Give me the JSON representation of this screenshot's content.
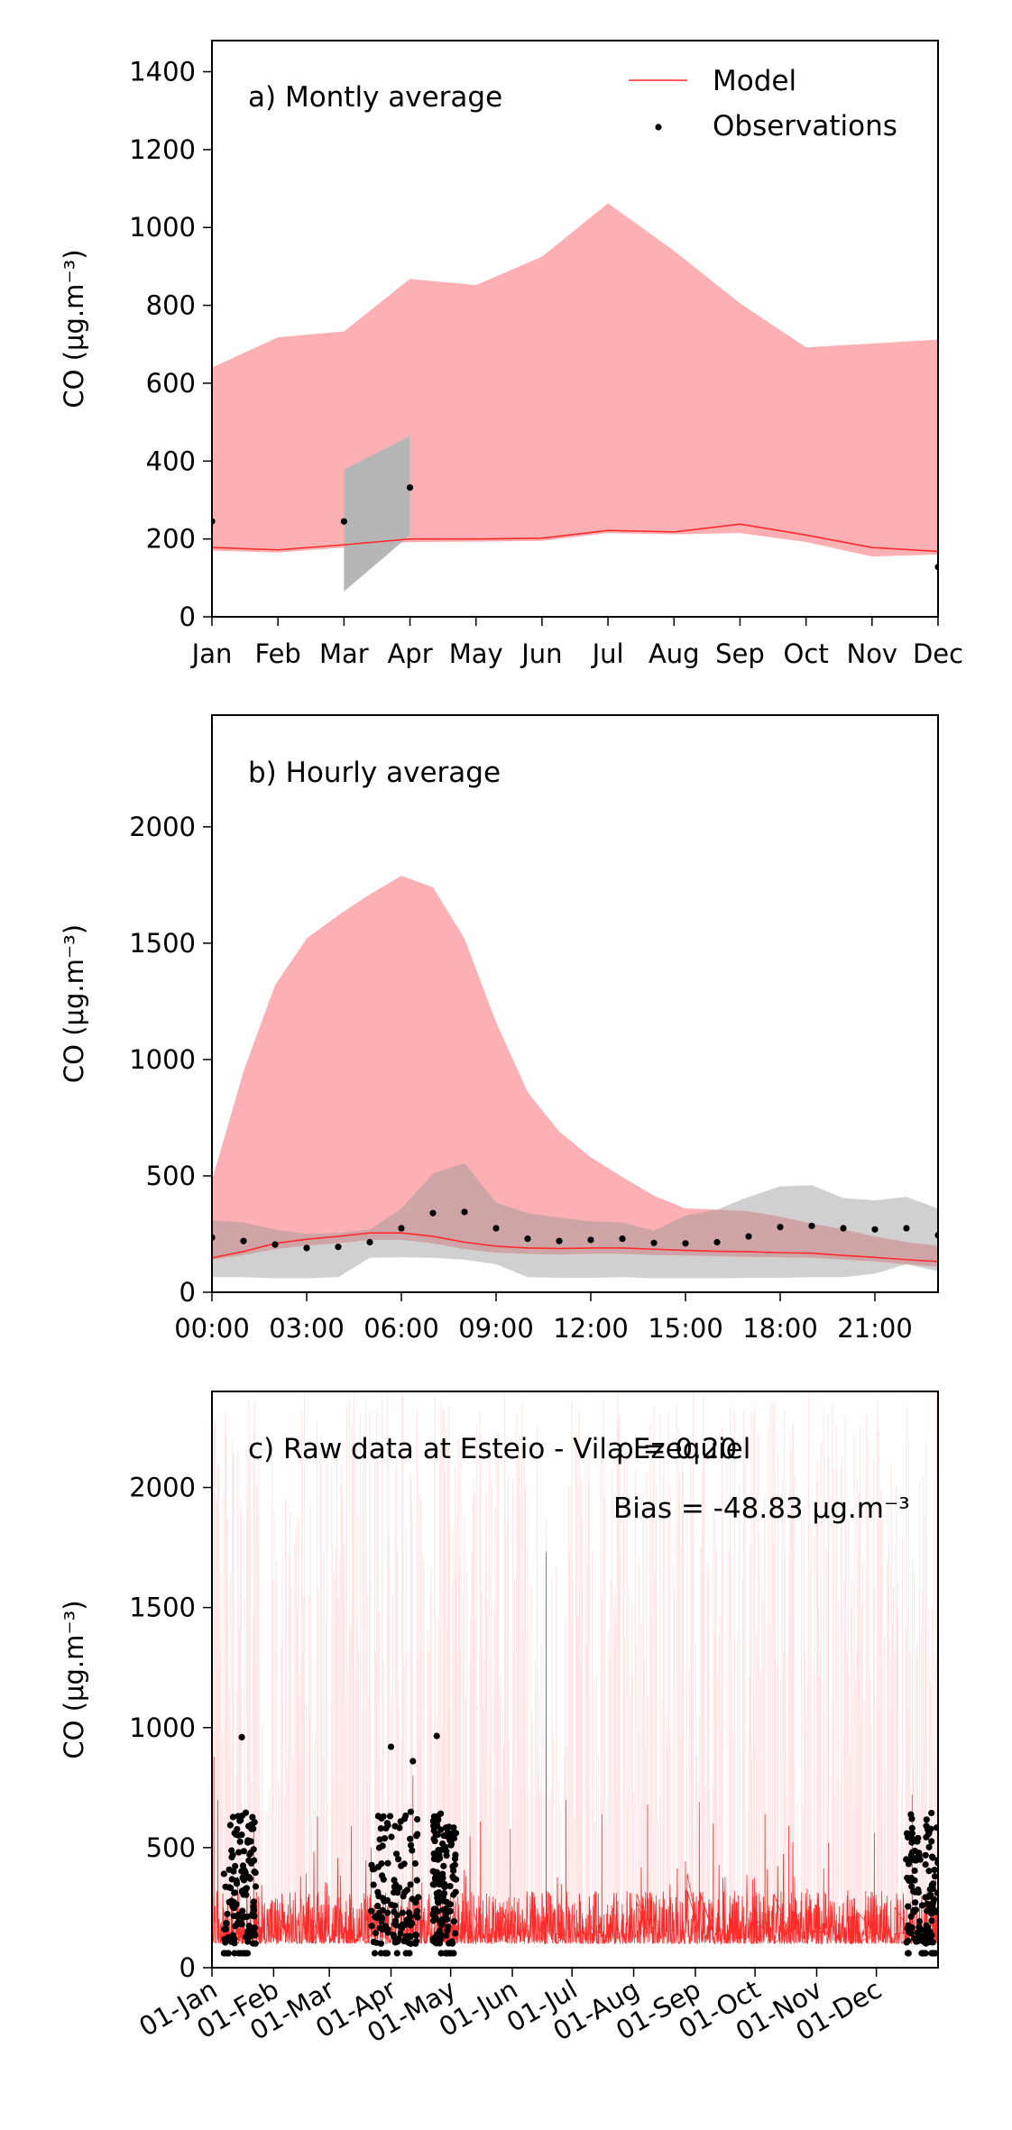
{
  "colors": {
    "model_line": "#ff2a2a",
    "model_band": "#fdb0b3",
    "obs_band": "#c8c8c8",
    "obs_point": "#000000",
    "raw_spikes": "#ffcccc"
  },
  "legend": {
    "model": "Model",
    "observations": "Observations"
  },
  "chart_data": [
    {
      "type": "line",
      "title": "a) Montly average",
      "ylabel": "CO (μg.m⁻³)",
      "ylim": [
        0,
        1480
      ],
      "yticks": [
        0,
        200,
        400,
        600,
        800,
        1000,
        1200,
        1400
      ],
      "yticklabels": [
        "0",
        "200",
        "400",
        "600",
        "800",
        "1000",
        "1200",
        "1400"
      ],
      "categories": [
        "Jan",
        "Feb",
        "Mar",
        "Apr",
        "May",
        "Jun",
        "Jul",
        "Aug",
        "Sep",
        "Oct",
        "Nov",
        "Dec"
      ],
      "series": [
        {
          "name": "Model",
          "values": [
            178,
            172,
            185,
            200,
            200,
            202,
            222,
            218,
            238,
            210,
            178,
            168
          ],
          "band_low": [
            170,
            165,
            178,
            192,
            193,
            195,
            215,
            212,
            215,
            192,
            155,
            160
          ],
          "band_high": [
            640,
            718,
            733,
            868,
            852,
            925,
            1062,
            940,
            805,
            692,
            702,
            712
          ]
        },
        {
          "name": "Observations",
          "values": [
            245,
            null,
            245,
            332,
            null,
            null,
            null,
            null,
            null,
            null,
            null,
            128
          ],
          "band_low": [
            null,
            null,
            65,
            210,
            null,
            null,
            null,
            null,
            null,
            null,
            null,
            null
          ],
          "band_high": [
            null,
            null,
            378,
            465,
            null,
            null,
            null,
            null,
            null,
            null,
            null,
            null
          ]
        }
      ],
      "legend_position": "top-right"
    },
    {
      "type": "line",
      "title": "b) Hourly average",
      "ylabel": "CO (μg.m⁻³)",
      "ylim": [
        0,
        2480
      ],
      "yticks": [
        0,
        500,
        1000,
        1500,
        2000
      ],
      "yticklabels": [
        "0",
        "500",
        "1000",
        "1500",
        "2000"
      ],
      "x": [
        0,
        1,
        2,
        3,
        4,
        5,
        6,
        7,
        8,
        9,
        10,
        11,
        12,
        13,
        14,
        15,
        16,
        17,
        18,
        19,
        20,
        21,
        22,
        23
      ],
      "xticks": [
        0,
        3,
        6,
        9,
        12,
        15,
        18,
        21
      ],
      "xticklabels": [
        "00:00",
        "03:00",
        "06:00",
        "09:00",
        "12:00",
        "15:00",
        "18:00",
        "21:00"
      ],
      "xlim": [
        0,
        23
      ],
      "series": [
        {
          "name": "Model",
          "values": [
            148,
            175,
            210,
            228,
            240,
            255,
            255,
            240,
            215,
            198,
            190,
            188,
            190,
            190,
            185,
            180,
            176,
            174,
            170,
            168,
            158,
            150,
            140,
            132
          ],
          "band_low": [
            140,
            160,
            185,
            200,
            210,
            225,
            225,
            210,
            185,
            170,
            165,
            162,
            165,
            165,
            160,
            158,
            155,
            152,
            150,
            148,
            140,
            132,
            120,
            110
          ],
          "band_high": [
            480,
            950,
            1320,
            1520,
            1620,
            1710,
            1790,
            1740,
            1520,
            1160,
            860,
            690,
            580,
            495,
            415,
            360,
            355,
            348,
            325,
            295,
            270,
            240,
            215,
            200
          ]
        },
        {
          "name": "Observations",
          "values": [
            235,
            220,
            205,
            190,
            195,
            215,
            275,
            340,
            345,
            275,
            230,
            220,
            225,
            230,
            212,
            210,
            215,
            240,
            280,
            285,
            275,
            270,
            275,
            245
          ],
          "band_low": [
            65,
            65,
            60,
            60,
            65,
            148,
            150,
            148,
            140,
            120,
            65,
            62,
            62,
            65,
            60,
            60,
            60,
            62,
            62,
            65,
            65,
            80,
            120,
            90
          ],
          "band_high": [
            310,
            300,
            270,
            250,
            255,
            270,
            360,
            510,
            555,
            385,
            340,
            320,
            305,
            300,
            265,
            330,
            355,
            410,
            455,
            460,
            405,
            395,
            410,
            360
          ]
        }
      ]
    },
    {
      "type": "line",
      "title": "c) Raw data at Esteio - Vila Ezequiel",
      "stats": {
        "rho": "ρ = 0.20",
        "bias": "Bias = -48.83 μg.m⁻³"
      },
      "ylabel": "CO (μg.m⁻³)",
      "ylim": [
        0,
        2400
      ],
      "yticks": [
        0,
        500,
        1000,
        1500,
        2000
      ],
      "yticklabels": [
        "0",
        "500",
        "1000",
        "1500",
        "2000"
      ],
      "xlim": [
        0,
        365
      ],
      "xticks": [
        0,
        31,
        59,
        90,
        120,
        151,
        181,
        212,
        243,
        273,
        304,
        334
      ],
      "xticklabels": [
        "01-Jan",
        "01-Feb",
        "01-Mar",
        "01-Apr",
        "01-May",
        "01-Jun",
        "01-Jul",
        "01-Aug",
        "01-Sep",
        "01-Oct",
        "01-Nov",
        "01-Dec"
      ],
      "series": [
        {
          "name": "Model",
          "baseline_range": [
            100,
            300
          ],
          "peaks": [
            [
              1,
              880
            ],
            [
              3,
              700
            ],
            [
              21,
              640
            ],
            [
              53,
              630
            ],
            [
              70,
              590
            ],
            [
              80,
              500
            ],
            [
              101,
              800
            ],
            [
              135,
              610
            ],
            [
              150,
              580
            ],
            [
              168,
              1730
            ],
            [
              178,
              700
            ],
            [
              196,
              640
            ],
            [
              219,
              680
            ],
            [
              245,
              690
            ],
            [
              252,
              600
            ],
            [
              278,
              640
            ],
            [
              290,
              590
            ],
            [
              310,
              520
            ],
            [
              333,
              560
            ],
            [
              352,
              720
            ]
          ]
        },
        {
          "name": "Observations",
          "day_ranges": [
            [
              6,
              22
            ],
            [
              80,
              104
            ],
            [
              111,
              123
            ],
            [
              349,
              365
            ]
          ],
          "y_range": [
            60,
            970
          ],
          "outliers": [
            [
              15,
              960
            ],
            [
              90,
              920
            ],
            [
              113,
              965
            ],
            [
              101,
              860
            ],
            [
              356,
              450
            ]
          ]
        }
      ]
    }
  ]
}
